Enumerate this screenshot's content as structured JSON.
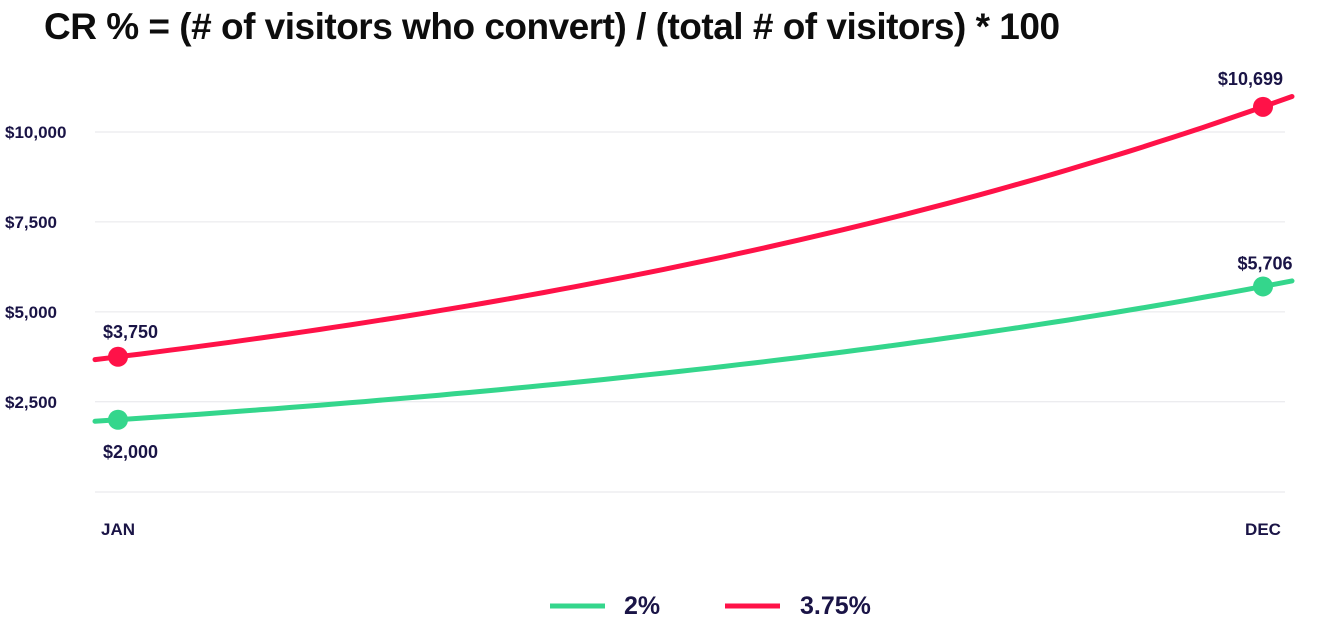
{
  "chart_data": {
    "type": "line",
    "title": "CR % = (# of visitors who convert) / (total # of visitors) * 100",
    "categories": [
      "JAN",
      "DEC"
    ],
    "yticks": [
      {
        "value": 2500,
        "label": "$2,500"
      },
      {
        "value": 5000,
        "label": "$5,000"
      },
      {
        "value": 7500,
        "label": "$7,500"
      },
      {
        "value": 10000,
        "label": "$10,000"
      }
    ],
    "ylim": [
      0,
      11000
    ],
    "grid": true,
    "legend_position": "bottom-center",
    "series": [
      {
        "name": "2%",
        "color": "#34d68c",
        "values": [
          2000,
          5706
        ],
        "labels": [
          "$2,000",
          "$5,706"
        ]
      },
      {
        "name": "3.75%",
        "color": "#ff1248",
        "values": [
          3750,
          10699
        ],
        "labels": [
          "$3,750",
          "$10,699"
        ]
      }
    ]
  }
}
